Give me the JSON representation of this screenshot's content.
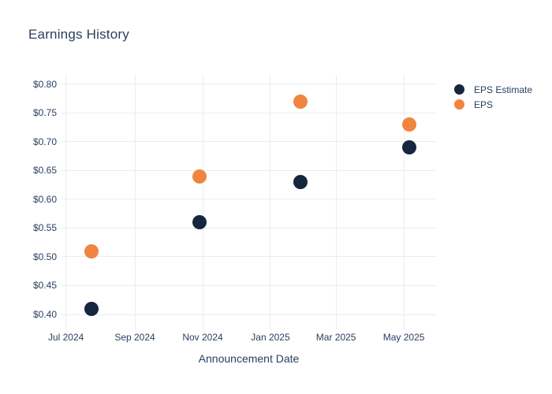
{
  "chart_data": {
    "type": "scatter",
    "title": "Earnings History",
    "xlabel": "Announcement Date",
    "ylabel": "",
    "x_axis": {
      "range": [
        "2024-06-27",
        "2025-05-30"
      ],
      "ticks": [
        {
          "date": "2024-07-01",
          "label": "Jul 2024"
        },
        {
          "date": "2024-09-01",
          "label": "Sep 2024"
        },
        {
          "date": "2024-11-01",
          "label": "Nov 2024"
        },
        {
          "date": "2025-01-01",
          "label": "Jan 2025"
        },
        {
          "date": "2025-03-01",
          "label": "Mar 2025"
        },
        {
          "date": "2025-05-01",
          "label": "May 2025"
        }
      ]
    },
    "y_axis": {
      "range": [
        0.374,
        0.816
      ],
      "ticks": [
        {
          "value": 0.8,
          "label": "$0.80"
        },
        {
          "value": 0.75,
          "label": "$0.75"
        },
        {
          "value": 0.7,
          "label": "$0.70"
        },
        {
          "value": 0.65,
          "label": "$0.65"
        },
        {
          "value": 0.6,
          "label": "$0.60"
        },
        {
          "value": 0.55,
          "label": "$0.55"
        },
        {
          "value": 0.5,
          "label": "$0.50"
        },
        {
          "value": 0.45,
          "label": "$0.45"
        },
        {
          "value": 0.4,
          "label": "$0.40"
        }
      ]
    },
    "grid": true,
    "legend_position": "top-right",
    "series": [
      {
        "name": "EPS Estimate",
        "color": "#15263e",
        "points": [
          {
            "x": "2024-07-24",
            "y": 0.41
          },
          {
            "x": "2024-10-29",
            "y": 0.56
          },
          {
            "x": "2025-01-28",
            "y": 0.63
          },
          {
            "x": "2025-05-06",
            "y": 0.69
          }
        ]
      },
      {
        "name": "EPS",
        "color": "#f08440",
        "points": [
          {
            "x": "2024-07-24",
            "y": 0.51
          },
          {
            "x": "2024-10-29",
            "y": 0.64
          },
          {
            "x": "2025-01-28",
            "y": 0.77
          },
          {
            "x": "2025-05-06",
            "y": 0.73
          }
        ]
      }
    ],
    "colors": {
      "text": "#2a3f5f",
      "grid": "#e8ecf4",
      "background": "#ffffff"
    }
  }
}
